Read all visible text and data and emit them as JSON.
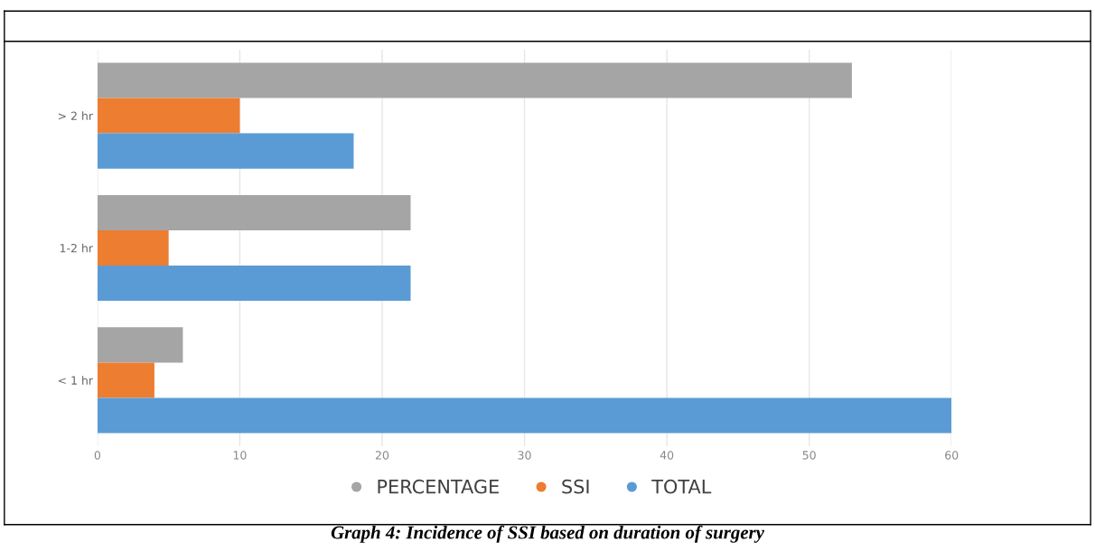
{
  "chart_data": {
    "type": "bar",
    "orientation": "horizontal",
    "title": "Graph 4: Incidence of SSI based on duration of surgery",
    "categories": [
      "> 2 hr",
      "1-2 hr",
      "< 1 hr"
    ],
    "series": [
      {
        "name": "PERCENTAGE",
        "color": "#a5a5a5",
        "values": [
          53,
          22,
          6
        ]
      },
      {
        "name": "SSI",
        "color": "#ed7d31",
        "values": [
          10,
          5,
          4
        ]
      },
      {
        "name": "TOTAL",
        "color": "#5b9bd5",
        "values": [
          18,
          22,
          60
        ]
      }
    ],
    "xlim": [
      0,
      60
    ],
    "xticks": [
      0,
      10,
      20,
      30,
      40,
      50,
      60
    ],
    "grid": "x",
    "legend": "bottom"
  }
}
